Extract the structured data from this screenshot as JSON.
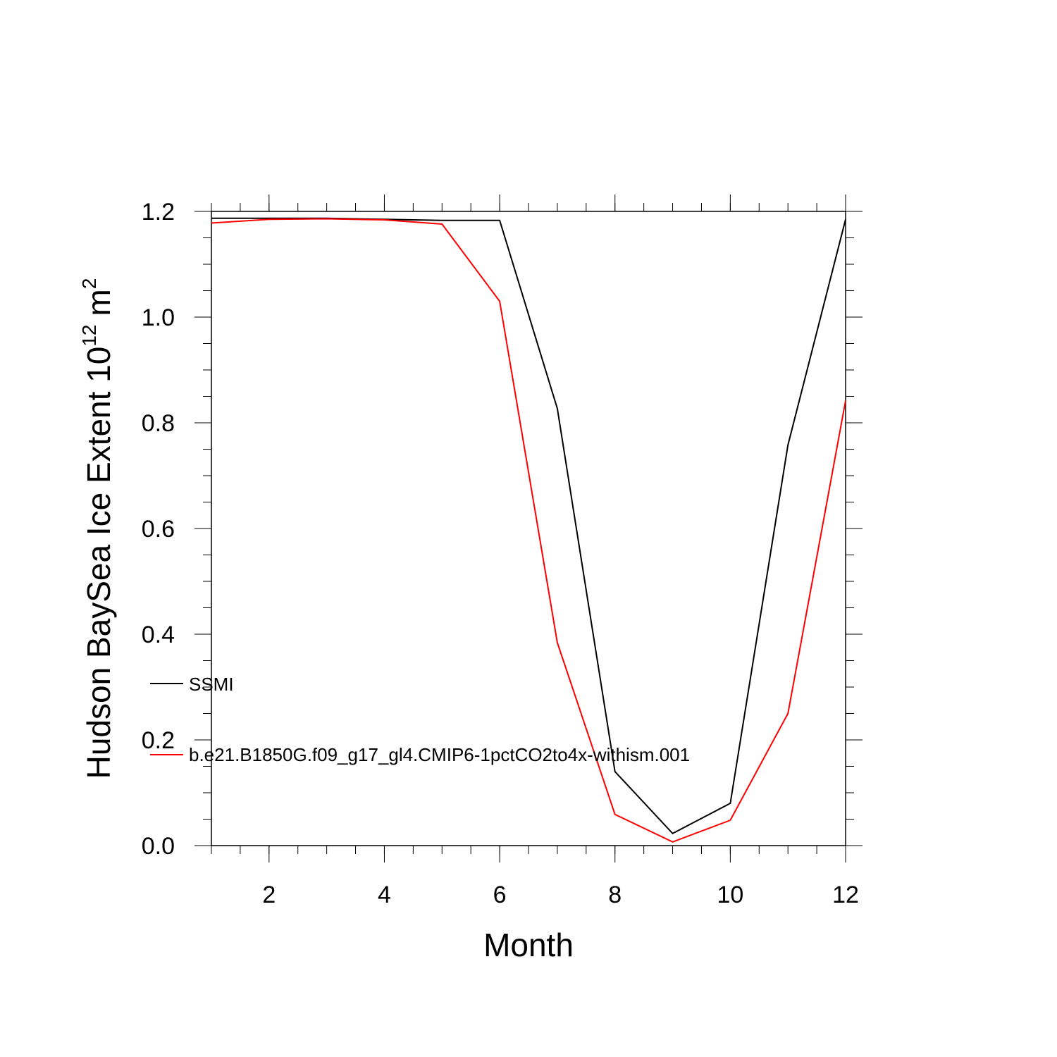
{
  "chart_data": {
    "type": "line",
    "x": [
      1,
      2,
      3,
      4,
      5,
      6,
      7,
      8,
      9,
      10,
      11,
      12
    ],
    "series": [
      {
        "name": "SSMI",
        "color": "#000000",
        "values": [
          1.187,
          1.187,
          1.187,
          1.185,
          1.183,
          1.183,
          0.827,
          0.14,
          0.023,
          0.08,
          0.758,
          1.185
        ]
      },
      {
        "name": "b.e21.B1850G.f09_g17_gl4.CMIP6-1pctCO2to4x-withism.001",
        "color": "#ff0000",
        "values": [
          1.178,
          1.185,
          1.186,
          1.184,
          1.176,
          1.03,
          0.384,
          0.059,
          0.007,
          0.048,
          0.25,
          0.842
        ]
      }
    ],
    "xlim": [
      1,
      12
    ],
    "ylim": [
      0,
      1.2
    ],
    "xticks": [
      "2",
      "4",
      "6",
      "8",
      "10",
      "12"
    ],
    "yticks": [
      "0.0",
      "0.2",
      "0.4",
      "0.6",
      "0.8",
      "1.0",
      "1.2"
    ],
    "xlabel": "Month",
    "ylabel": "Hudson BaySea Ice Extent 10",
    "ylabel_exponent": "12",
    "ylabel_unit": "m",
    "ylabel_unit_exponent": "2",
    "grid": false,
    "legend_position": "left-inside"
  }
}
